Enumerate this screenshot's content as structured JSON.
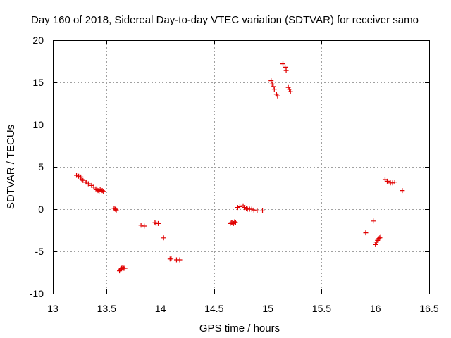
{
  "chart_data": {
    "type": "scatter",
    "title": "Day 160 of 2018, Sidereal Day-to-day VTEC variation (SDTVAR) for receiver samo",
    "xlabel": "GPS time / hours",
    "ylabel": "SDTVAR / TECUs",
    "xlim": [
      13,
      16.5
    ],
    "ylim": [
      -10,
      20
    ],
    "xticks": [
      13,
      13.5,
      14,
      14.5,
      15,
      15.5,
      16,
      16.5
    ],
    "xtick_labels": [
      "13",
      "13.5",
      "14",
      "14.5",
      "15",
      "15.5",
      "16",
      "16.5"
    ],
    "yticks": [
      -10,
      -5,
      0,
      5,
      10,
      15,
      20
    ],
    "ytick_labels": [
      "-10",
      "-5",
      "0",
      "5",
      "10",
      "15",
      "20"
    ],
    "grid": true,
    "marker_color": "#e00000",
    "marker": "plus",
    "series": [
      {
        "name": "SDTVAR",
        "points": [
          [
            13.22,
            4.0
          ],
          [
            13.24,
            3.9
          ],
          [
            13.26,
            3.8
          ],
          [
            13.27,
            3.5
          ],
          [
            13.28,
            3.4
          ],
          [
            13.3,
            3.2
          ],
          [
            13.31,
            3.2
          ],
          [
            13.33,
            3.0
          ],
          [
            13.36,
            2.8
          ],
          [
            13.38,
            2.6
          ],
          [
            13.4,
            2.4
          ],
          [
            13.41,
            2.3
          ],
          [
            13.42,
            2.2
          ],
          [
            13.43,
            2.1
          ],
          [
            13.44,
            2.3
          ],
          [
            13.45,
            2.2
          ],
          [
            13.46,
            2.2
          ],
          [
            13.47,
            2.1
          ],
          [
            13.57,
            0.1
          ],
          [
            13.58,
            0.0
          ],
          [
            13.59,
            -0.1
          ],
          [
            13.62,
            -7.3
          ],
          [
            13.63,
            -7.1
          ],
          [
            13.64,
            -7.0
          ],
          [
            13.65,
            -6.9
          ],
          [
            13.66,
            -7.0
          ],
          [
            13.67,
            -7.0
          ],
          [
            13.82,
            -1.9
          ],
          [
            13.85,
            -2.0
          ],
          [
            13.95,
            -1.6
          ],
          [
            13.96,
            -1.7
          ],
          [
            13.98,
            -1.7
          ],
          [
            14.03,
            -3.4
          ],
          [
            14.09,
            -5.9
          ],
          [
            14.1,
            -5.8
          ],
          [
            14.15,
            -6.0
          ],
          [
            14.18,
            -6.0
          ],
          [
            14.65,
            -1.7
          ],
          [
            14.66,
            -1.6
          ],
          [
            14.67,
            -1.6
          ],
          [
            14.68,
            -1.7
          ],
          [
            14.69,
            -1.5
          ],
          [
            14.7,
            -1.6
          ],
          [
            14.72,
            0.2
          ],
          [
            14.74,
            0.3
          ],
          [
            14.77,
            0.4
          ],
          [
            14.78,
            0.2
          ],
          [
            14.8,
            0.1
          ],
          [
            14.81,
            0.0
          ],
          [
            14.83,
            0.0
          ],
          [
            14.85,
            0.0
          ],
          [
            14.87,
            -0.1
          ],
          [
            14.9,
            -0.2
          ],
          [
            14.95,
            -0.2
          ],
          [
            15.03,
            15.2
          ],
          [
            15.04,
            14.8
          ],
          [
            15.05,
            14.5
          ],
          [
            15.06,
            14.2
          ],
          [
            15.08,
            13.6
          ],
          [
            15.09,
            13.4
          ],
          [
            15.14,
            17.2
          ],
          [
            15.16,
            16.8
          ],
          [
            15.17,
            16.4
          ],
          [
            15.19,
            14.4
          ],
          [
            15.2,
            14.2
          ],
          [
            15.21,
            13.9
          ],
          [
            15.91,
            -2.8
          ],
          [
            15.98,
            -1.4
          ],
          [
            16.0,
            -4.2
          ],
          [
            16.01,
            -3.9
          ],
          [
            16.02,
            -3.7
          ],
          [
            16.03,
            -3.5
          ],
          [
            16.04,
            -3.4
          ],
          [
            16.05,
            -3.3
          ],
          [
            16.09,
            3.5
          ],
          [
            16.11,
            3.3
          ],
          [
            16.14,
            3.1
          ],
          [
            16.16,
            3.1
          ],
          [
            16.18,
            3.2
          ],
          [
            16.25,
            2.2
          ]
        ]
      }
    ]
  }
}
